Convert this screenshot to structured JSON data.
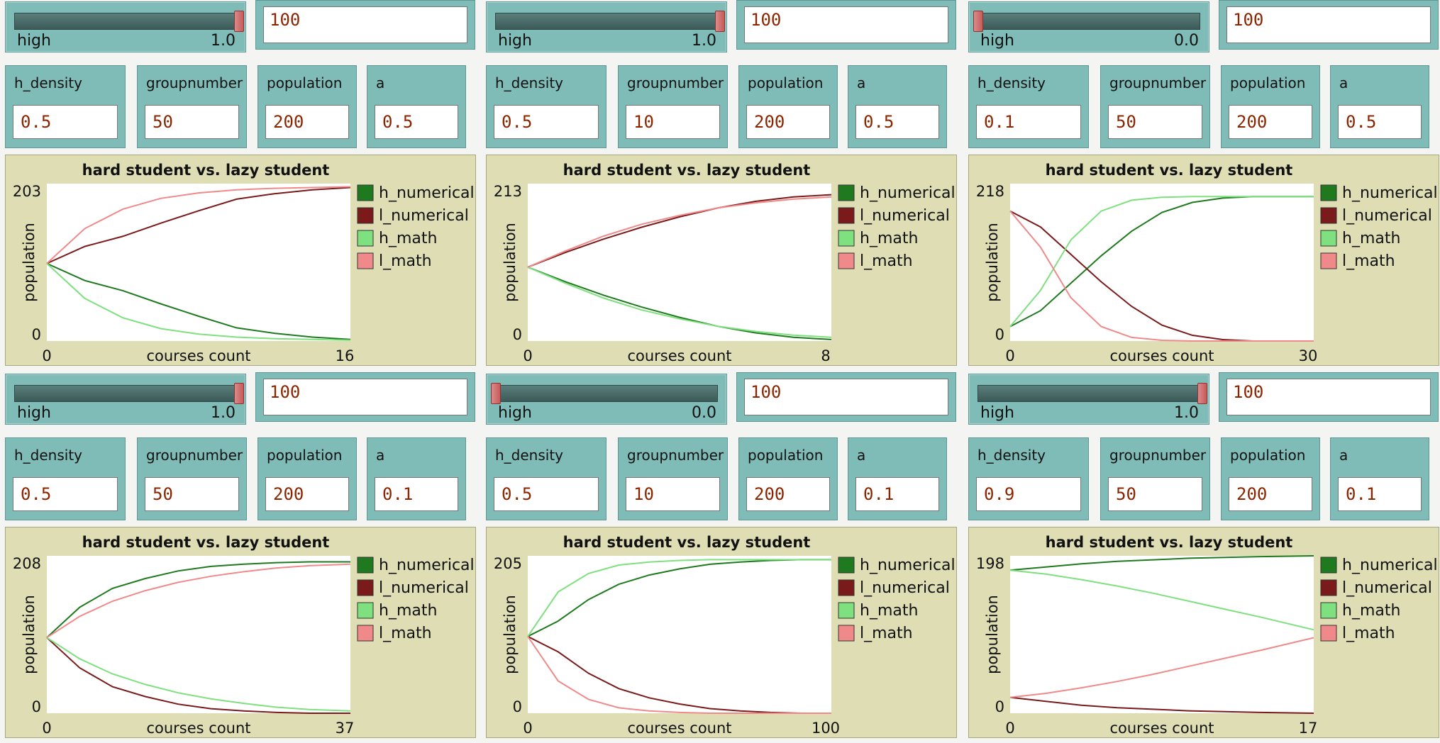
{
  "panels": [
    {
      "slider": {
        "label": "high",
        "value": "1.0",
        "position": 1.0
      },
      "input": {
        "value": "100"
      },
      "params": [
        {
          "name": "h_density",
          "value": "0.5"
        },
        {
          "name": "groupnumber",
          "value": "50"
        },
        {
          "name": "population",
          "value": "200"
        },
        {
          "name": "a",
          "value": "0.5"
        }
      ],
      "plot": {
        "title": "hard student vs. lazy student",
        "ylabel": "population",
        "xlabel": "courses count",
        "ymin_label": "0",
        "ymax_label": "203",
        "xmin_label": "0",
        "xmax_label": "16",
        "legend": [
          "h_numerical",
          "l_numerical",
          "h_math",
          "l_math"
        ]
      }
    },
    {
      "slider": {
        "label": "high",
        "value": "1.0",
        "position": 1.0
      },
      "input": {
        "value": "100"
      },
      "params": [
        {
          "name": "h_density",
          "value": "0.5"
        },
        {
          "name": "groupnumber",
          "value": "10"
        },
        {
          "name": "population",
          "value": "200"
        },
        {
          "name": "a",
          "value": "0.5"
        }
      ],
      "plot": {
        "title": "hard student vs. lazy student",
        "ylabel": "population",
        "xlabel": "courses count",
        "ymin_label": "0",
        "ymax_label": "213",
        "xmin_label": "0",
        "xmax_label": "8",
        "legend": [
          "h_numerical",
          "l_numerical",
          "h_math",
          "l_math"
        ]
      }
    },
    {
      "slider": {
        "label": "high",
        "value": "0.0",
        "position": 0.0
      },
      "input": {
        "value": "100"
      },
      "params": [
        {
          "name": "h_density",
          "value": "0.1"
        },
        {
          "name": "groupnumber",
          "value": "50"
        },
        {
          "name": "population",
          "value": "200"
        },
        {
          "name": "a",
          "value": "0.5"
        }
      ],
      "plot": {
        "title": "hard student vs. lazy student",
        "ylabel": "population",
        "xlabel": "courses count",
        "ymin_label": "0",
        "ymax_label": "218",
        "xmin_label": "0",
        "xmax_label": "30",
        "legend": [
          "h_numerical",
          "l_numerical",
          "h_math",
          "l_math"
        ]
      }
    },
    {
      "slider": {
        "label": "high",
        "value": "1.0",
        "position": 1.0
      },
      "input": {
        "value": "100"
      },
      "params": [
        {
          "name": "h_density",
          "value": "0.5"
        },
        {
          "name": "groupnumber",
          "value": "50"
        },
        {
          "name": "population",
          "value": "200"
        },
        {
          "name": "a",
          "value": "0.1"
        }
      ],
      "plot": {
        "title": "hard student vs. lazy student",
        "ylabel": "population",
        "xlabel": "courses count",
        "ymin_label": "0",
        "ymax_label": "208",
        "xmin_label": "0",
        "xmax_label": "37",
        "legend": [
          "h_numerical",
          "l_numerical",
          "h_math",
          "l_math"
        ]
      }
    },
    {
      "slider": {
        "label": "high",
        "value": "0.0",
        "position": 0.0
      },
      "input": {
        "value": "100"
      },
      "params": [
        {
          "name": "h_density",
          "value": "0.5"
        },
        {
          "name": "groupnumber",
          "value": "10"
        },
        {
          "name": "population",
          "value": "200"
        },
        {
          "name": "a",
          "value": "0.1"
        }
      ],
      "plot": {
        "title": "hard student vs. lazy student",
        "ylabel": "population",
        "xlabel": "courses count",
        "ymin_label": "0",
        "ymax_label": "205",
        "xmin_label": "0",
        "xmax_label": "100",
        "legend": [
          "h_numerical",
          "l_numerical",
          "h_math",
          "l_math"
        ]
      }
    },
    {
      "slider": {
        "label": "high",
        "value": "1.0",
        "position": 1.0
      },
      "input": {
        "value": "100"
      },
      "params": [
        {
          "name": "h_density",
          "value": "0.9"
        },
        {
          "name": "groupnumber",
          "value": "50"
        },
        {
          "name": "population",
          "value": "200"
        },
        {
          "name": "a",
          "value": "0.1"
        }
      ],
      "plot": {
        "title": "hard student vs. lazy student",
        "ylabel": "population",
        "xlabel": "courses count",
        "ymin_label": "0",
        "ymax_label": "198",
        "xmin_label": "0",
        "xmax_label": "17",
        "legend": [
          "h_numerical",
          "l_numerical",
          "h_math",
          "l_math"
        ]
      }
    }
  ],
  "series_colors": {
    "h_numerical": "#1f7a1f",
    "l_numerical": "#7a1a1a",
    "h_math": "#7ee07e",
    "l_math": "#f08a8a"
  },
  "chart_data": [
    {
      "type": "line",
      "title": "hard student vs. lazy student",
      "xlabel": "courses count",
      "ylabel": "population",
      "xlim": [
        0,
        16
      ],
      "ylim": [
        0,
        203
      ],
      "x": [
        0,
        2,
        4,
        6,
        8,
        10,
        12,
        14,
        16
      ],
      "series": [
        {
          "name": "h_numerical",
          "values": [
            100,
            78,
            65,
            48,
            32,
            17,
            10,
            5,
            2
          ]
        },
        {
          "name": "l_numerical",
          "values": [
            100,
            122,
            135,
            152,
            168,
            183,
            190,
            195,
            198
          ]
        },
        {
          "name": "h_math",
          "values": [
            100,
            55,
            30,
            16,
            9,
            5,
            3,
            2,
            1
          ]
        },
        {
          "name": "l_math",
          "values": [
            100,
            145,
            170,
            184,
            191,
            195,
            197,
            198,
            199
          ]
        }
      ]
    },
    {
      "type": "line",
      "title": "hard student vs. lazy student",
      "xlabel": "courses count",
      "ylabel": "population",
      "xlim": [
        0,
        8
      ],
      "ylim": [
        0,
        213
      ],
      "x": [
        0,
        1,
        2,
        3,
        4,
        5,
        6,
        7,
        8
      ],
      "series": [
        {
          "name": "h_numerical",
          "values": [
            100,
            80,
            62,
            46,
            32,
            20,
            11,
            5,
            2
          ]
        },
        {
          "name": "l_numerical",
          "values": [
            100,
            120,
            138,
            154,
            168,
            180,
            189,
            195,
            198
          ]
        },
        {
          "name": "h_math",
          "values": [
            100,
            78,
            58,
            42,
            30,
            20,
            13,
            8,
            5
          ]
        },
        {
          "name": "l_math",
          "values": [
            100,
            122,
            142,
            158,
            170,
            180,
            187,
            192,
            195
          ]
        }
      ]
    },
    {
      "type": "line",
      "title": "hard student vs. lazy student",
      "xlabel": "courses count",
      "ylabel": "population",
      "xlim": [
        0,
        30
      ],
      "ylim": [
        0,
        218
      ],
      "x": [
        0,
        3,
        6,
        9,
        12,
        15,
        18,
        21,
        24,
        27,
        30
      ],
      "series": [
        {
          "name": "h_numerical",
          "values": [
            20,
            42,
            80,
            118,
            152,
            178,
            192,
            198,
            200,
            200,
            200
          ]
        },
        {
          "name": "l_numerical",
          "values": [
            180,
            158,
            120,
            82,
            48,
            22,
            8,
            2,
            0,
            0,
            0
          ]
        },
        {
          "name": "h_math",
          "values": [
            20,
            70,
            140,
            180,
            195,
            199,
            200,
            200,
            200,
            200,
            200
          ]
        },
        {
          "name": "l_math",
          "values": [
            180,
            130,
            60,
            20,
            5,
            1,
            0,
            0,
            0,
            0,
            0
          ]
        }
      ]
    },
    {
      "type": "line",
      "title": "hard student vs. lazy student",
      "xlabel": "courses count",
      "ylabel": "population",
      "xlim": [
        0,
        37
      ],
      "ylim": [
        0,
        208
      ],
      "x": [
        0,
        4,
        8,
        12,
        16,
        20,
        24,
        28,
        32,
        37
      ],
      "series": [
        {
          "name": "h_numerical",
          "values": [
            100,
            140,
            165,
            178,
            188,
            194,
            197,
            199,
            200,
            200
          ]
        },
        {
          "name": "l_numerical",
          "values": [
            100,
            60,
            35,
            22,
            12,
            6,
            3,
            1,
            0,
            0
          ]
        },
        {
          "name": "h_math",
          "values": [
            100,
            72,
            52,
            38,
            27,
            19,
            13,
            8,
            5,
            3
          ]
        },
        {
          "name": "l_math",
          "values": [
            100,
            128,
            148,
            162,
            173,
            181,
            187,
            192,
            195,
            197
          ]
        }
      ]
    },
    {
      "type": "line",
      "title": "hard student vs. lazy student",
      "xlabel": "courses count",
      "ylabel": "population",
      "xlim": [
        0,
        100
      ],
      "ylim": [
        0,
        205
      ],
      "x": [
        0,
        10,
        20,
        30,
        40,
        50,
        60,
        70,
        80,
        90,
        100
      ],
      "series": [
        {
          "name": "h_numerical",
          "values": [
            100,
            120,
            148,
            168,
            180,
            188,
            194,
            197,
            199,
            200,
            200
          ]
        },
        {
          "name": "l_numerical",
          "values": [
            100,
            80,
            52,
            32,
            20,
            12,
            6,
            3,
            1,
            0,
            0
          ]
        },
        {
          "name": "h_math",
          "values": [
            100,
            158,
            182,
            193,
            197,
            199,
            200,
            200,
            200,
            200,
            200
          ]
        },
        {
          "name": "l_math",
          "values": [
            100,
            42,
            18,
            7,
            3,
            1,
            0,
            0,
            0,
            0,
            0
          ]
        }
      ]
    },
    {
      "type": "line",
      "title": "hard student vs. lazy student",
      "xlabel": "courses count",
      "ylabel": "population",
      "xlim": [
        0,
        17
      ],
      "ylim": [
        0,
        198
      ],
      "x": [
        0,
        2,
        4,
        6,
        8,
        10,
        12,
        14,
        17
      ],
      "series": [
        {
          "name": "h_numerical",
          "values": [
            180,
            184,
            188,
            191,
            193,
            195,
            196,
            197,
            198
          ]
        },
        {
          "name": "l_numerical",
          "values": [
            20,
            15,
            10,
            7,
            5,
            3,
            2,
            1,
            0
          ]
        },
        {
          "name": "h_math",
          "values": [
            180,
            175,
            168,
            160,
            151,
            141,
            131,
            121,
            105
          ]
        },
        {
          "name": "l_math",
          "values": [
            20,
            25,
            32,
            40,
            49,
            59,
            69,
            79,
            95
          ]
        }
      ]
    }
  ]
}
